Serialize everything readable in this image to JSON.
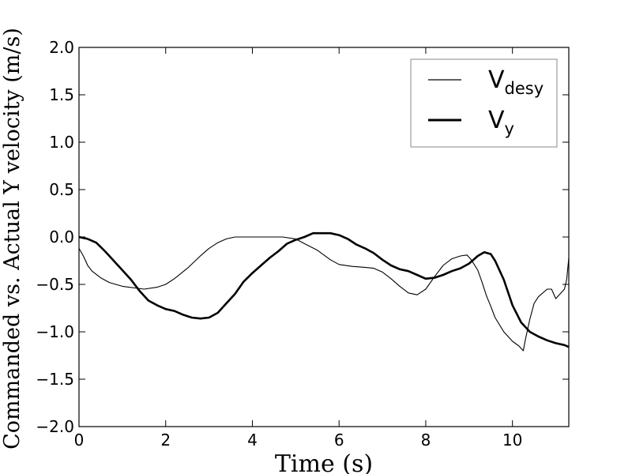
{
  "chart_data": {
    "type": "line",
    "title": "",
    "xlabel": "Time (s)",
    "ylabel": "Commanded vs. Actual Y velocity (m/s)",
    "xlim": [
      0,
      11.3
    ],
    "ylim": [
      -2.0,
      2.0
    ],
    "xticks": [
      "0",
      "2",
      "4",
      "6",
      "8",
      "10"
    ],
    "xtick_values": [
      0,
      2,
      4,
      6,
      8,
      10
    ],
    "yticks": [
      "−2.0",
      "−1.5",
      "−1.0",
      "−0.5",
      "0.0",
      "0.5",
      "1.0",
      "1.5",
      "2.0"
    ],
    "ytick_values": [
      -2.0,
      -1.5,
      -1.0,
      -0.5,
      0.0,
      0.5,
      1.0,
      1.5,
      2.0
    ],
    "grid": false,
    "legend_position": "upper-right",
    "series": [
      {
        "name": "Vdesy",
        "name_main": "V",
        "name_sub": "desy",
        "color": "#000000",
        "style": "thin",
        "x": [
          0,
          0.1,
          0.2,
          0.3,
          0.5,
          0.7,
          1.0,
          1.5,
          1.8,
          2.0,
          2.2,
          2.5,
          2.8,
          3.0,
          3.2,
          3.4,
          3.6,
          3.8,
          4.0,
          4.2,
          4.5,
          4.7,
          5.0,
          5.2,
          5.5,
          5.8,
          6.0,
          6.3,
          6.6,
          6.8,
          7.0,
          7.2,
          7.4,
          7.6,
          7.8,
          8.0,
          8.2,
          8.4,
          8.6,
          8.8,
          8.95,
          9.05,
          9.2,
          9.3,
          9.4,
          9.5,
          9.6,
          9.8,
          10.0,
          10.15,
          10.25,
          10.3,
          10.4,
          10.5,
          10.6,
          10.8,
          10.9,
          11.0,
          11.2,
          11.25,
          11.3
        ],
        "y": [
          -0.12,
          -0.2,
          -0.3,
          -0.36,
          -0.43,
          -0.48,
          -0.52,
          -0.55,
          -0.53,
          -0.5,
          -0.44,
          -0.33,
          -0.2,
          -0.12,
          -0.06,
          -0.02,
          0.0,
          0.0,
          0.0,
          0.0,
          0.0,
          0.0,
          -0.02,
          -0.07,
          -0.14,
          -0.24,
          -0.29,
          -0.31,
          -0.32,
          -0.33,
          -0.37,
          -0.44,
          -0.52,
          -0.59,
          -0.61,
          -0.55,
          -0.42,
          -0.3,
          -0.23,
          -0.2,
          -0.19,
          -0.24,
          -0.35,
          -0.48,
          -0.62,
          -0.73,
          -0.85,
          -1.0,
          -1.1,
          -1.15,
          -1.2,
          -1.08,
          -0.87,
          -0.7,
          -0.63,
          -0.55,
          -0.55,
          -0.65,
          -0.55,
          -0.45,
          -0.22
        ]
      },
      {
        "name": "Vy",
        "name_main": "V",
        "name_sub": "y",
        "color": "#000000",
        "style": "thick",
        "x": [
          0,
          0.1,
          0.2,
          0.4,
          0.6,
          0.8,
          1.0,
          1.2,
          1.4,
          1.6,
          1.8,
          2.0,
          2.2,
          2.4,
          2.6,
          2.8,
          3.0,
          3.2,
          3.4,
          3.6,
          3.8,
          4.0,
          4.2,
          4.4,
          4.6,
          4.8,
          5.0,
          5.2,
          5.4,
          5.6,
          5.8,
          6.0,
          6.2,
          6.4,
          6.6,
          6.8,
          7.0,
          7.2,
          7.4,
          7.6,
          7.8,
          8.0,
          8.2,
          8.4,
          8.6,
          8.8,
          9.0,
          9.2,
          9.35,
          9.5,
          9.6,
          9.8,
          10.0,
          10.2,
          10.4,
          10.6,
          10.8,
          11.0,
          11.2,
          11.3
        ],
        "y": [
          0.0,
          -0.01,
          -0.02,
          -0.06,
          -0.15,
          -0.25,
          -0.35,
          -0.45,
          -0.57,
          -0.67,
          -0.72,
          -0.76,
          -0.78,
          -0.82,
          -0.85,
          -0.86,
          -0.85,
          -0.8,
          -0.7,
          -0.6,
          -0.47,
          -0.38,
          -0.3,
          -0.22,
          -0.15,
          -0.07,
          -0.03,
          0.0,
          0.04,
          0.04,
          0.04,
          0.02,
          -0.02,
          -0.08,
          -0.12,
          -0.17,
          -0.24,
          -0.3,
          -0.34,
          -0.36,
          -0.4,
          -0.44,
          -0.43,
          -0.4,
          -0.36,
          -0.33,
          -0.28,
          -0.2,
          -0.16,
          -0.18,
          -0.25,
          -0.45,
          -0.72,
          -0.9,
          -1.0,
          -1.05,
          -1.09,
          -1.12,
          -1.14,
          -1.16
        ]
      }
    ]
  }
}
